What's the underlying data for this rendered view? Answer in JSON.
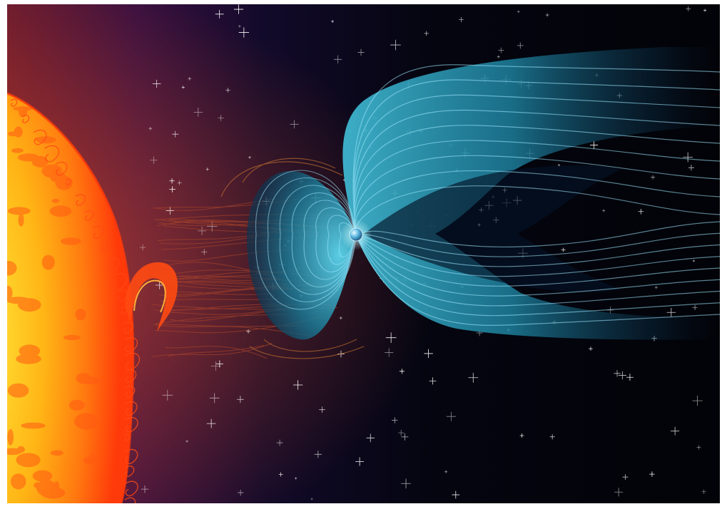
{
  "illustration": {
    "elements": [
      {
        "id": "sun",
        "icon": "sun-surface"
      },
      {
        "id": "solar-prominence",
        "icon": "plasma-loop"
      },
      {
        "id": "solar-wind",
        "icon": "particle-streams"
      },
      {
        "id": "magnetosphere",
        "icon": "magnetic-field-lines"
      },
      {
        "id": "earth",
        "icon": "planet"
      },
      {
        "id": "starfield",
        "icon": "stars"
      }
    ],
    "colors": {
      "space_dark": "#04050f",
      "space_purple": "#2a0f3a",
      "sun_core": "#ffd21a",
      "sun_mid": "#ff8a12",
      "sun_edge": "#ff3c0a",
      "field_light": "#8fe8ff",
      "field_mid": "#2a9bb8",
      "field_dark": "#0c3a55",
      "earth": "#5ab7e0",
      "star": "#ffffff"
    }
  }
}
